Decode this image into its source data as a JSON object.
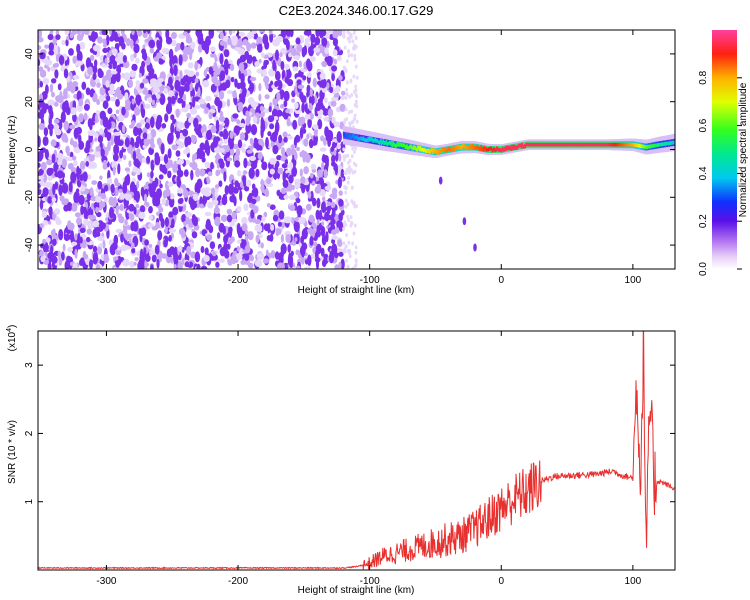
{
  "title": "C2E3.2024.346.00.17.G29",
  "chart_data": [
    {
      "type": "heatmap",
      "title": "C2E3.2024.346.00.17.G29",
      "xlabel": "Height of straight line (km)",
      "ylabel": "Frequency (Hz)",
      "xlim": [
        -352,
        132
      ],
      "ylim": [
        -50,
        50
      ],
      "xticks": [
        -300,
        -200,
        -100,
        0,
        100
      ],
      "yticks": [
        -40,
        -20,
        0,
        20,
        40
      ],
      "colorbar": {
        "label": "Normalized spectral amplitude",
        "range": [
          0,
          1
        ],
        "ticks": [
          0.0,
          0.2,
          0.4,
          0.6,
          0.8
        ],
        "tick_labels": [
          "0.0",
          "0.2",
          "0.4",
          "0.6",
          "0.8"
        ]
      },
      "noise_region_x": [
        -352,
        -120
      ],
      "ridge": {
        "x": [
          -120,
          -110,
          -100,
          -90,
          -80,
          -70,
          -60,
          -50,
          -40,
          -30,
          -20,
          -10,
          0,
          10,
          20,
          40,
          60,
          80,
          100,
          110,
          120,
          132
        ],
        "frequency": [
          6,
          5,
          4,
          3,
          2,
          1,
          0,
          -1,
          0,
          1,
          1,
          0,
          0,
          1,
          2,
          2,
          2,
          2,
          2,
          1,
          2,
          3
        ],
        "amplitude": [
          0.3,
          0.35,
          0.4,
          0.45,
          0.55,
          0.6,
          0.7,
          0.8,
          0.85,
          0.8,
          0.85,
          0.9,
          0.95,
          0.95,
          0.95,
          0.95,
          0.95,
          0.95,
          0.8,
          0.6,
          0.5,
          0.4
        ]
      },
      "artifact_points": [
        {
          "x": -46,
          "frequency": -13
        },
        {
          "x": -28,
          "frequency": -30
        },
        {
          "x": -20,
          "frequency": -41
        }
      ]
    },
    {
      "type": "line",
      "xlabel": "Height of straight line (km)",
      "ylabel": "SNR (10 * v/v)",
      "y_multiplier_label": "(x10",
      "y_multiplier_exp": "4",
      "xlim": [
        -352,
        132
      ],
      "ylim": [
        0,
        3.5
      ],
      "xticks": [
        -300,
        -200,
        -100,
        0,
        100
      ],
      "yticks": [
        1,
        2,
        3
      ],
      "series": [
        {
          "color": "#e8312f",
          "x": [
            -352,
            -250,
            -150,
            -120,
            -110,
            -100,
            -90,
            -80,
            -70,
            -60,
            -50,
            -40,
            -30,
            -20,
            -10,
            0,
            10,
            20,
            30,
            40,
            50,
            60,
            70,
            80,
            85,
            90,
            95,
            100,
            103,
            106,
            108,
            110,
            113,
            116,
            120,
            126,
            132
          ],
          "y": [
            0.03,
            0.03,
            0.03,
            0.03,
            0.05,
            0.1,
            0.2,
            0.25,
            0.3,
            0.35,
            0.4,
            0.45,
            0.5,
            0.6,
            0.75,
            0.9,
            1.05,
            1.15,
            1.3,
            1.37,
            1.38,
            1.39,
            1.4,
            1.43,
            1.45,
            1.4,
            1.37,
            1.35,
            2.8,
            1.2,
            3.5,
            0.2,
            2.5,
            1.3,
            1.3,
            1.25,
            1.18
          ]
        }
      ]
    }
  ]
}
